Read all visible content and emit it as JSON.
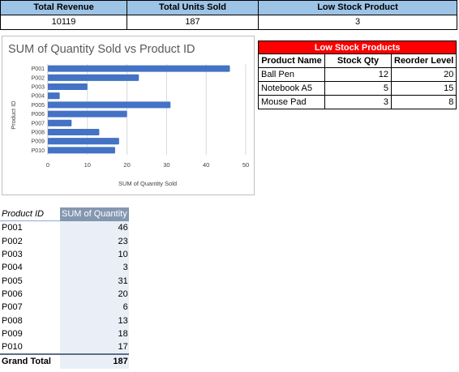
{
  "kpi": {
    "headers": [
      "Total Revenue",
      "Total Units Sold",
      "Low Stock Product"
    ],
    "values": [
      "10119",
      "187",
      "3"
    ]
  },
  "low_stock": {
    "title": "Low Stock Products",
    "columns": [
      "Product Name",
      "Stock Qty",
      "Reorder Level"
    ],
    "rows": [
      [
        "Ball Pen",
        "12",
        "20"
      ],
      [
        "Notebook A5",
        "5",
        "15"
      ],
      [
        "Mouse Pad",
        "3",
        "8"
      ]
    ]
  },
  "chart_data": {
    "type": "bar",
    "orientation": "horizontal",
    "title": "SUM of Quantity Sold vs Product ID",
    "xlabel": "SUM of Quantity Sold",
    "ylabel": "Product ID",
    "categories": [
      "P001",
      "P002",
      "P003",
      "P004",
      "P005",
      "P006",
      "P007",
      "P008",
      "P009",
      "P010"
    ],
    "values": [
      46,
      23,
      10,
      3,
      31,
      20,
      6,
      13,
      18,
      17
    ],
    "xlim": [
      0,
      50
    ],
    "xticks": [
      "0",
      "10",
      "20",
      "30",
      "40",
      "50"
    ],
    "grid": true,
    "bar_color": "#4472c4"
  },
  "pivot": {
    "header": [
      "Product ID",
      "SUM of Quantity"
    ],
    "rows": [
      [
        "P001",
        "46"
      ],
      [
        "P002",
        "23"
      ],
      [
        "P003",
        "10"
      ],
      [
        "P004",
        "3"
      ],
      [
        "P005",
        "31"
      ],
      [
        "P006",
        "20"
      ],
      [
        "P007",
        "6"
      ],
      [
        "P008",
        "13"
      ],
      [
        "P009",
        "18"
      ],
      [
        "P010",
        "17"
      ]
    ],
    "total_label": "Grand Total",
    "total_value": "187"
  }
}
